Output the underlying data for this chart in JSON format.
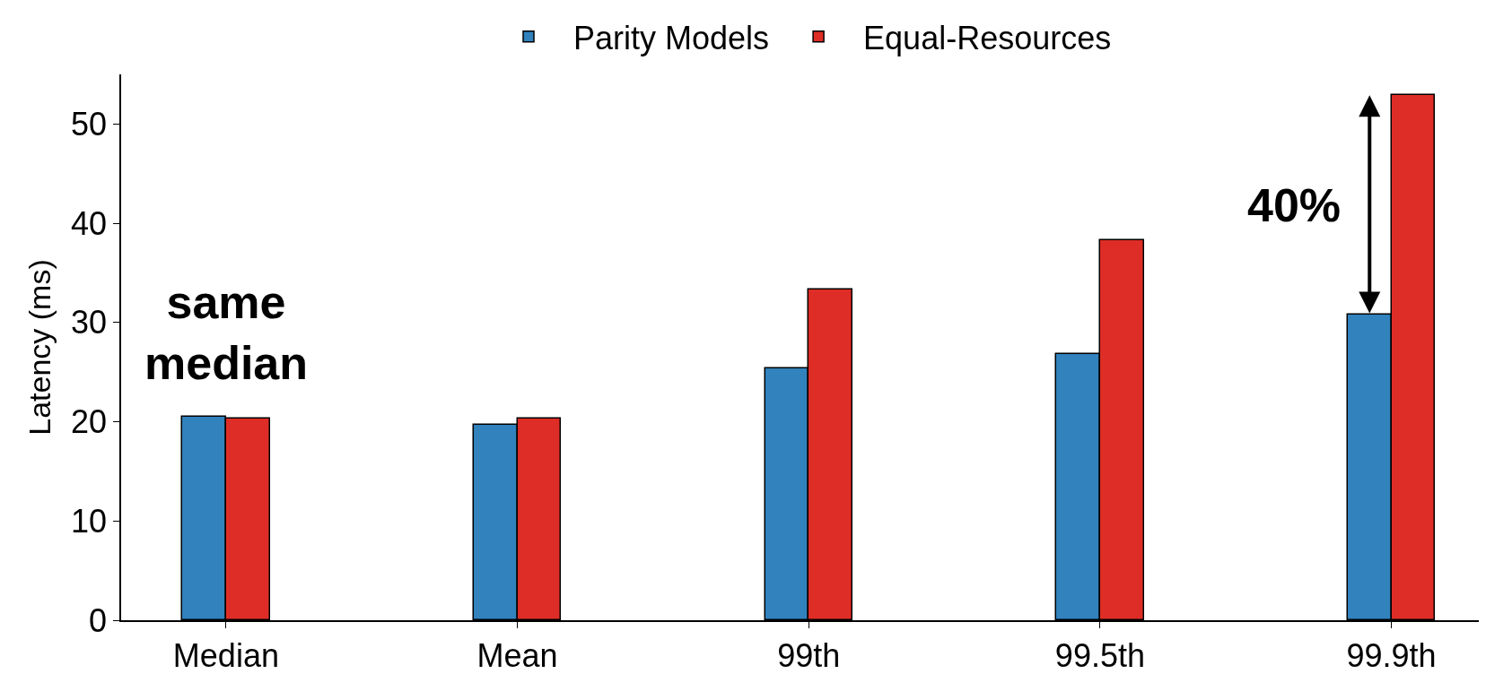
{
  "chart_data": {
    "type": "bar",
    "ylabel": "Latency (ms)",
    "categories": [
      "Median",
      "Mean",
      "99th",
      "99.5th",
      "99.9th"
    ],
    "series": [
      {
        "name": "Parity Models",
        "color": "#3182bd",
        "values": [
          20.5,
          19.7,
          25.4,
          26.8,
          30.8
        ]
      },
      {
        "name": "Equal-Resources",
        "color": "#de2d26",
        "values": [
          20.3,
          20.3,
          33.3,
          38.3,
          52.9
        ]
      }
    ],
    "ylim": [
      0,
      55
    ],
    "yticks": [
      0,
      10,
      20,
      30,
      40,
      50
    ],
    "grid": false,
    "legend": "top",
    "annotations": [
      "same\nmedian",
      {
        "text": "40%",
        "x": "99.9th",
        "y": 41.8
      }
    ]
  }
}
